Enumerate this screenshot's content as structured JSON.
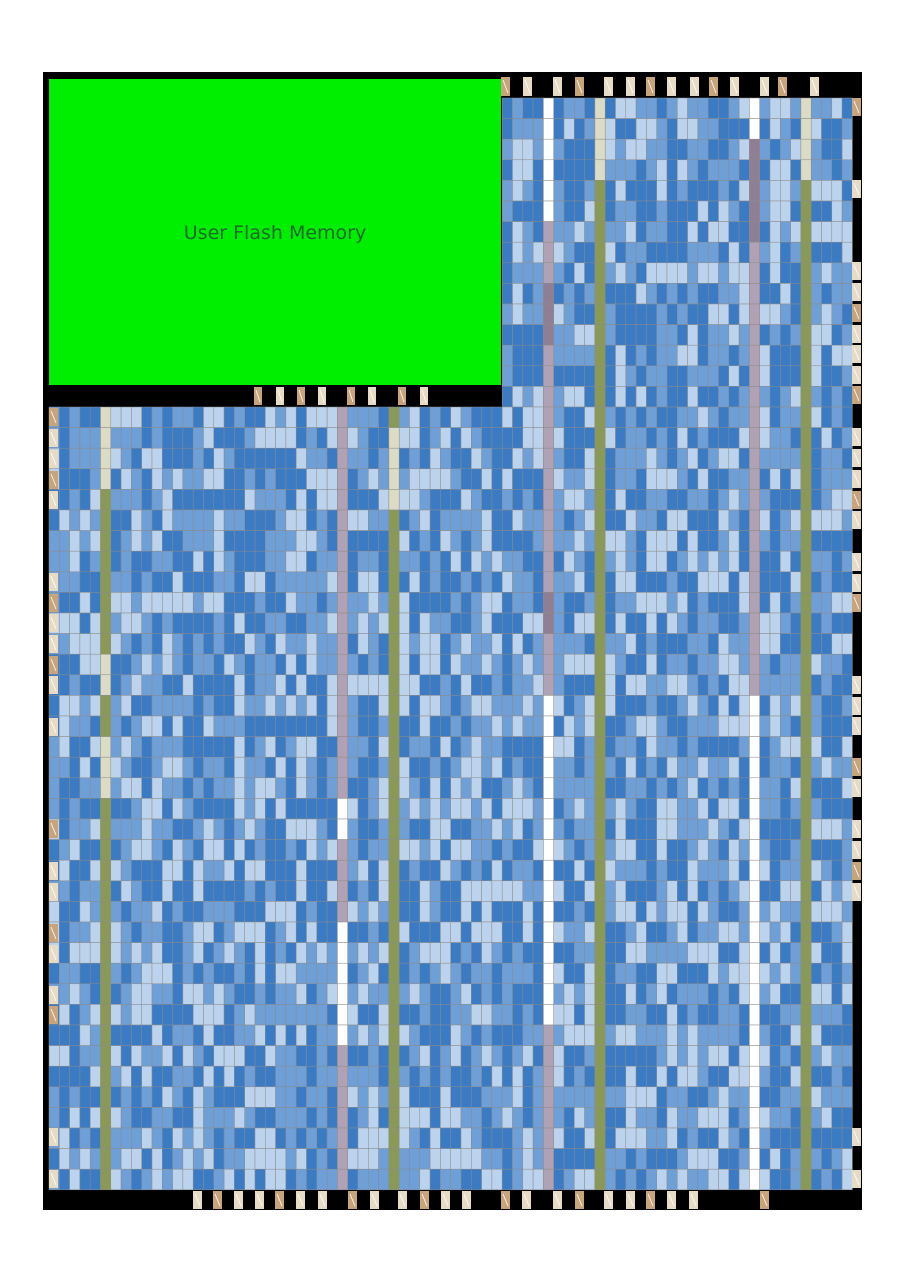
{
  "flash": {
    "label": "User Flash Memory",
    "color": "#00ee00",
    "label_color": "#1a6a2a"
  },
  "colors": {
    "background": "#000000",
    "grid_line": "#8c8c8c",
    "lab_light": "#bcd3ed",
    "lab_mid": "#6e9fd6",
    "lab_dark": "#3a7bc4",
    "memory_column": "#8a9a56",
    "memory_column_light": "#dcdcc4",
    "dsp_column": "#b0a2b4",
    "dsp_column_dark": "#907f94",
    "white_column": "#ffffff",
    "io_pad": "#c8a47a",
    "io_pad_light": "#e6dcc6",
    "io_pad_dark": "#b07c34"
  },
  "legend_icons": [
    "io-pad-icon",
    "pll-icon",
    "flash-block-icon"
  ]
}
